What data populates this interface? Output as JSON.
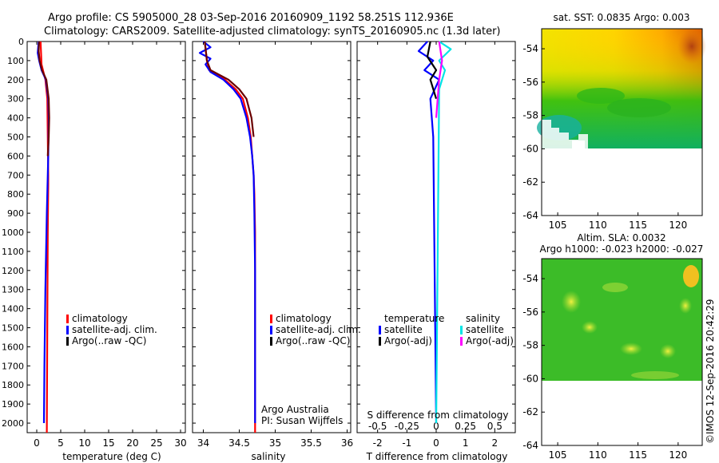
{
  "title": {
    "line1": "Argo profile: CS 5905000_28 03-Sep-2016 20160909_1192 58.251S 112.936E",
    "line2": "Climatology: CARS2009. Satellite-adjusted climatology: synTS_20160905.nc (1.3d later)"
  },
  "colors": {
    "climatology": "#ff0000",
    "satellite_adj": "#0000ff",
    "argo": "#000000",
    "argo_raw_dark": "#6a0000",
    "satellite_diff": "#00e5e5",
    "argo_adj_diff": "#ff00ff"
  },
  "chart_data": [
    {
      "type": "line",
      "panel": "temperature",
      "xlabel": "temperature (deg C)",
      "ylabel": "",
      "xlim": [
        -2,
        31
      ],
      "ylim": [
        2050,
        0
      ],
      "xticks": [
        "0",
        "5",
        "10",
        "15",
        "20",
        "25",
        "30"
      ],
      "yticks": [
        "0",
        "100",
        "200",
        "300",
        "400",
        "500",
        "600",
        "700",
        "800",
        "900",
        "1000",
        "1100",
        "1200",
        "1300",
        "1400",
        "1500",
        "1600",
        "1700",
        "1800",
        "1900",
        "2000"
      ],
      "legend": [
        "climatology",
        "satellite-adj. clim.",
        "Argo(..raw -QC)"
      ],
      "legend_placement": "lower-center",
      "series": [
        {
          "name": "climatology",
          "x": [
            0.8,
            0.9,
            1.0,
            1.3,
            1.8,
            2.2,
            2.3,
            2.4,
            2.4,
            2.3,
            2.2,
            2.1
          ],
          "y": [
            0,
            60,
            120,
            150,
            200,
            300,
            500,
            700,
            750,
            1000,
            1500,
            2050
          ]
        },
        {
          "name": "satellite-adj. clim.",
          "x": [
            0.4,
            0.2,
            0.5,
            1.0,
            1.9,
            2.4,
            2.5,
            2.4,
            2.1,
            1.8,
            1.6,
            1.5
          ],
          "y": [
            0,
            60,
            100,
            150,
            200,
            300,
            400,
            600,
            900,
            1300,
            1700,
            2000
          ]
        },
        {
          "name": "Argo(..raw -QC)",
          "x": [
            0.5,
            0.4,
            0.6,
            1.1,
            2.0,
            2.5,
            2.6,
            2.5,
            2.3
          ],
          "y": [
            0,
            50,
            100,
            150,
            200,
            300,
            400,
            500,
            600
          ]
        }
      ]
    },
    {
      "type": "line",
      "panel": "salinity",
      "xlabel": "salinity",
      "xlim": [
        33.85,
        36.05
      ],
      "ylim": [
        2050,
        0
      ],
      "xticks": [
        "34",
        "34.5",
        "35",
        "35.5",
        "36"
      ],
      "legend": [
        "climatology",
        "satellite-adj. clim.",
        "Argo(..raw -QC)"
      ],
      "annotation": [
        "Argo Australia",
        "PI: Susan Wijffels"
      ],
      "series": [
        {
          "name": "climatology",
          "x": [
            34.02,
            34.05,
            34.08,
            34.3,
            34.45,
            34.55,
            34.62,
            34.66,
            34.68,
            34.7,
            34.71,
            34.72,
            34.72,
            34.72
          ],
          "y": [
            0,
            100,
            150,
            200,
            250,
            300,
            400,
            500,
            600,
            700,
            800,
            1000,
            1500,
            2050
          ]
        },
        {
          "name": "satellite-adj. clim.",
          "x": [
            34.0,
            34.1,
            33.95,
            34.1,
            34.03,
            34.1,
            34.28,
            34.42,
            34.52,
            34.6,
            34.65,
            34.68,
            34.7,
            34.71,
            34.72,
            34.72,
            34.72
          ],
          "y": [
            0,
            30,
            60,
            90,
            120,
            160,
            200,
            250,
            300,
            400,
            500,
            600,
            700,
            900,
            1200,
            1600,
            2000
          ]
        },
        {
          "name": "Argo(..raw -QC)",
          "x": [
            34.02,
            34.05,
            34.1,
            34.35,
            34.5,
            34.6,
            34.67,
            34.7
          ],
          "y": [
            0,
            100,
            150,
            200,
            250,
            300,
            400,
            500
          ]
        }
      ]
    },
    {
      "type": "line",
      "panel": "difference",
      "xlabel": "T difference from climatology",
      "xlabel_top": "S difference from climatology",
      "xlim": [
        -2.7,
        2.7
      ],
      "ylim": [
        2050,
        0
      ],
      "xticks": [
        "-2",
        "-1",
        "0",
        "1",
        "2"
      ],
      "xticks_top": [
        "-0.5",
        "-0.25",
        "0",
        "0.25",
        "0.5"
      ],
      "legend_headers": [
        "temperature",
        "salinity"
      ],
      "legend": [
        "satellite",
        "Argo(-adj)",
        "satellite",
        "Argo(-adj)"
      ],
      "series": [
        {
          "name": "temperature satellite",
          "x": [
            -0.3,
            -0.6,
            -0.1,
            -0.4,
            0.1,
            -0.2,
            -0.1,
            0.0
          ],
          "y": [
            0,
            50,
            100,
            150,
            200,
            300,
            500,
            2000
          ]
        },
        {
          "name": "temperature Argo(-adj)",
          "x": [
            -0.2,
            -0.3,
            0.0,
            -0.2,
            0.0
          ],
          "y": [
            0,
            80,
            150,
            200,
            300
          ]
        },
        {
          "name": "salinity satellite",
          "x": [
            0.1,
            0.5,
            0.1,
            0.3,
            0.1,
            0.0
          ],
          "y": [
            0,
            40,
            100,
            150,
            250,
            2000
          ]
        },
        {
          "name": "salinity Argo(-adj)",
          "x": [
            0.1,
            0.2,
            0.1,
            0.0
          ],
          "y": [
            0,
            100,
            200,
            400
          ]
        }
      ]
    },
    {
      "type": "heatmap",
      "panel": "sst-map",
      "title": "sat. SST: 0.0835 Argo: 0.003",
      "xlim": [
        103,
        123
      ],
      "ylim": [
        -64,
        -52.8
      ],
      "xticks": [
        "105",
        "110",
        "115",
        "120"
      ],
      "yticks": [
        "-54",
        "-56",
        "-58",
        "-60",
        "-62",
        "-64"
      ]
    },
    {
      "type": "heatmap",
      "panel": "sla-map",
      "title": [
        "Altim. SLA: 0.0032",
        "Argo h1000: -0.023 h2000: -0.027"
      ],
      "xlim": [
        103,
        123
      ],
      "ylim": [
        -64,
        -52.8
      ],
      "xticks": [
        "105",
        "110",
        "115",
        "120"
      ],
      "yticks": [
        "-54",
        "-56",
        "-58",
        "-60",
        "-62",
        "-64"
      ]
    }
  ],
  "credit": "©IMOS 12-Sep-2016 20:42:29"
}
